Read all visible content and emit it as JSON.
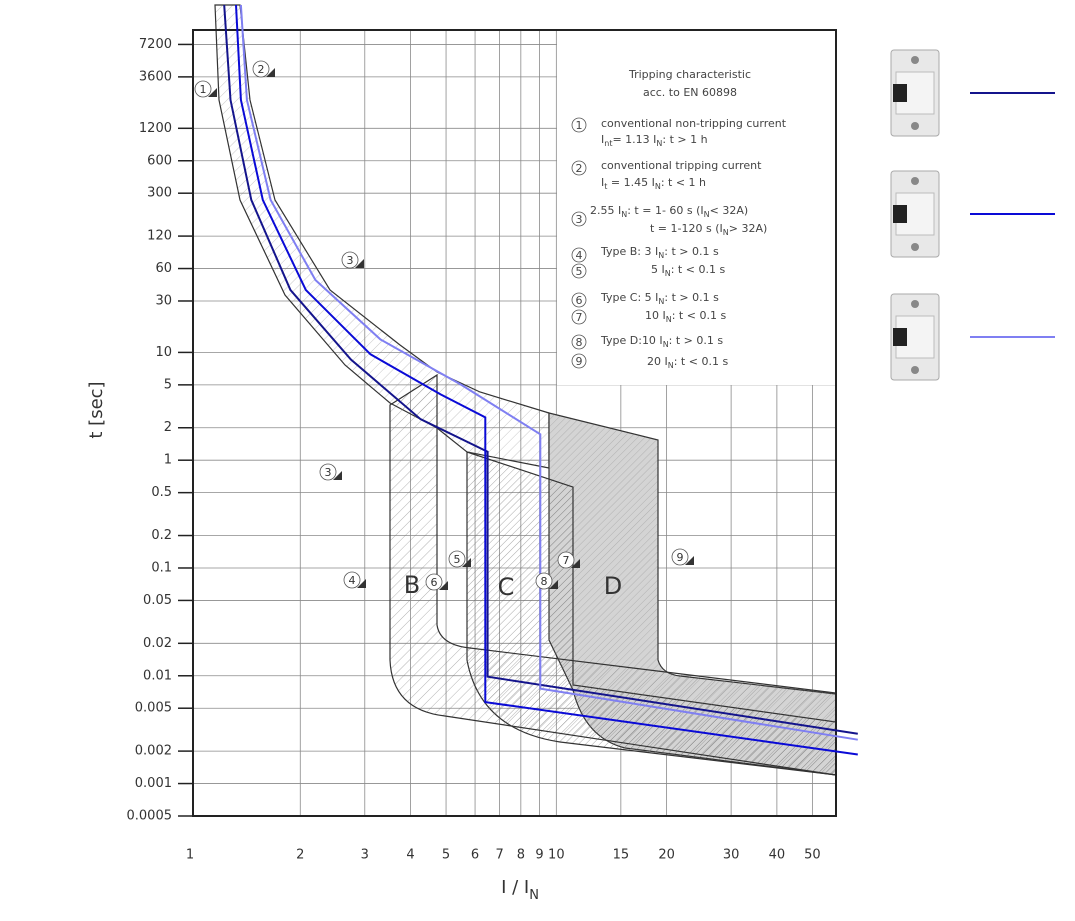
{
  "chart_data": {
    "type": "line",
    "x_label": [
      "I / I",
      "N"
    ],
    "y_label": "t [sec]",
    "log_x": true,
    "log_y": true,
    "grid": true,
    "xlim": [
      1,
      58
    ],
    "ylim": [
      0.0005,
      9800
    ],
    "xticks": [
      1,
      2,
      3,
      4,
      5,
      6,
      7,
      8,
      9,
      10,
      15,
      20,
      30,
      40,
      50
    ],
    "yticks": [
      7200,
      3600,
      1200,
      600,
      300,
      120,
      60,
      30,
      10,
      5,
      2,
      1,
      0.5,
      0.2,
      0.1,
      0.05,
      0.02,
      0.01,
      0.005,
      0.002,
      0.001,
      0.0005
    ],
    "series": [
      {
        "color": "#14148c",
        "x": [
          1.24,
          1.29,
          1.47,
          1.88,
          2.75,
          4.26,
          6.49,
          6.49,
          66.5
        ],
        "values": [
          16700,
          2200,
          260,
          38,
          8.6,
          2.4,
          1.2,
          0.0098,
          0.0029
        ]
      },
      {
        "color": "#0a0ad6",
        "x": [
          1.335,
          1.377,
          1.58,
          2.07,
          3.11,
          4.83,
          6.4,
          6.4,
          66.5
        ],
        "values": [
          16700,
          2200,
          260,
          38,
          9.6,
          4.08,
          2.5,
          0.0057,
          0.00186
        ]
      },
      {
        "color": "#7f7ff2",
        "x": [
          1.377,
          1.43,
          1.66,
          2.2,
          3.31,
          5.48,
          9.04,
          9.04,
          66.5
        ],
        "values": [
          16700,
          2200,
          260,
          47,
          13.2,
          5.05,
          1.74,
          0.0076,
          0.00255
        ]
      }
    ],
    "band_labels": [
      "B",
      "C",
      "D"
    ],
    "markers": [
      "1",
      "2",
      "3",
      "3",
      "4",
      "5",
      "6",
      "7",
      "8",
      "9"
    ],
    "info_box": {
      "title": [
        "Tripping characteristic",
        "acc. to EN 60898"
      ],
      "items": [
        {
          "num": "1",
          "lines": [
            [
              "conventional non-tripping current"
            ],
            [
              "I",
              "nt",
              "= 1.13 I",
              "N",
              ": t > 1 h"
            ]
          ]
        },
        {
          "num": "2",
          "lines": [
            [
              "conventional tripping current"
            ],
            [
              "I",
              "t",
              " = 1.45 I",
              "N",
              ": t < 1 h"
            ]
          ]
        },
        {
          "num": "3",
          "lines": [
            [
              "2.55 I",
              "N",
              ": t = 1- 60 s (I",
              "N",
              "< 32A)"
            ],
            [
              "t = 1-120 s (I",
              "N",
              "> 32A)"
            ]
          ]
        },
        {
          "num": "4",
          "lines": [
            [
              "Type B: 3 I",
              "N",
              ": t > 0.1 s"
            ]
          ]
        },
        {
          "num": "5",
          "lines": [
            [
              "5 I",
              "N",
              ": t < 0.1 s"
            ]
          ]
        },
        {
          "num": "6",
          "lines": [
            [
              "Type C: 5 I",
              "N",
              ": t > 0.1 s"
            ]
          ]
        },
        {
          "num": "7",
          "lines": [
            [
              "10 I",
              "N",
              ": t < 0.1 s"
            ]
          ]
        },
        {
          "num": "8",
          "lines": [
            [
              "Type D:10 I",
              "N",
              ": t > 0.1 s"
            ]
          ]
        },
        {
          "num": "9",
          "lines": [
            [
              "20 I",
              "N",
              ": t < 0.1 s"
            ]
          ]
        }
      ]
    }
  }
}
